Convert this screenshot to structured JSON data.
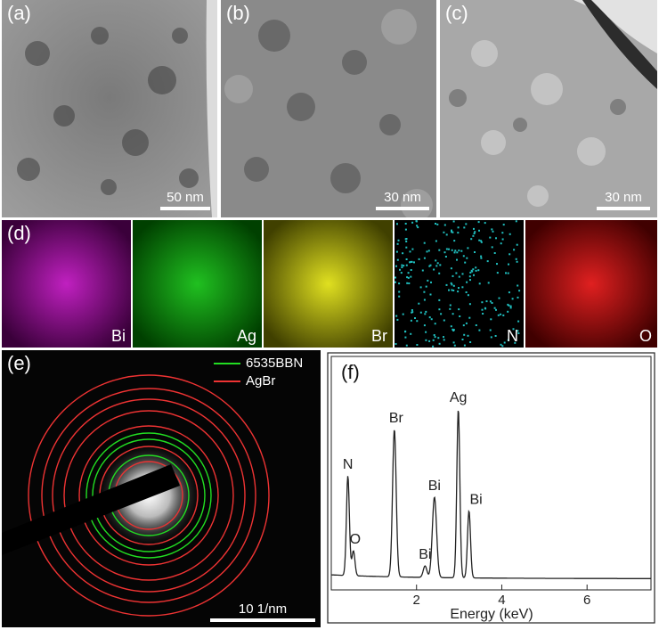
{
  "panels": {
    "a": {
      "label": "(a)",
      "scale": "50 nm"
    },
    "b": {
      "label": "(b)",
      "scale": "30 nm"
    },
    "c": {
      "label": "(c)",
      "scale": "30 nm"
    },
    "d": {
      "label": "(d)",
      "maps": [
        {
          "element": "Bi",
          "color": "#c020c0"
        },
        {
          "element": "Ag",
          "color": "#20c020"
        },
        {
          "element": "Br",
          "color": "#e0e020"
        },
        {
          "element": "N",
          "color": "#20c0c0"
        },
        {
          "element": "O",
          "color": "#e02020"
        }
      ]
    },
    "e": {
      "label": "(e)",
      "scale": "10 1/nm",
      "legend": [
        {
          "name": "6535BBN",
          "color": "#22dd22"
        },
        {
          "name": "AgBr",
          "color": "#ee3333"
        }
      ]
    },
    "f": {
      "label": "(f)"
    }
  },
  "chart_data": {
    "type": "line",
    "title": "",
    "xlabel": "Energy (keV)",
    "ylabel": "",
    "xlim": [
      0,
      7.5
    ],
    "ylim": [
      0,
      1
    ],
    "xticks": [
      2,
      4,
      6
    ],
    "peaks": [
      {
        "label": "N",
        "x": 0.39,
        "y": 0.52
      },
      {
        "label": "O",
        "x": 0.52,
        "y": 0.13
      },
      {
        "label": "Br",
        "x": 1.48,
        "y": 0.77
      },
      {
        "label": "Bi",
        "x": 2.2,
        "y": 0.06
      },
      {
        "label": "Bi",
        "x": 2.42,
        "y": 0.42
      },
      {
        "label": "Ag",
        "x": 2.98,
        "y": 0.88
      },
      {
        "label": "Bi",
        "x": 3.23,
        "y": 0.35
      }
    ]
  }
}
